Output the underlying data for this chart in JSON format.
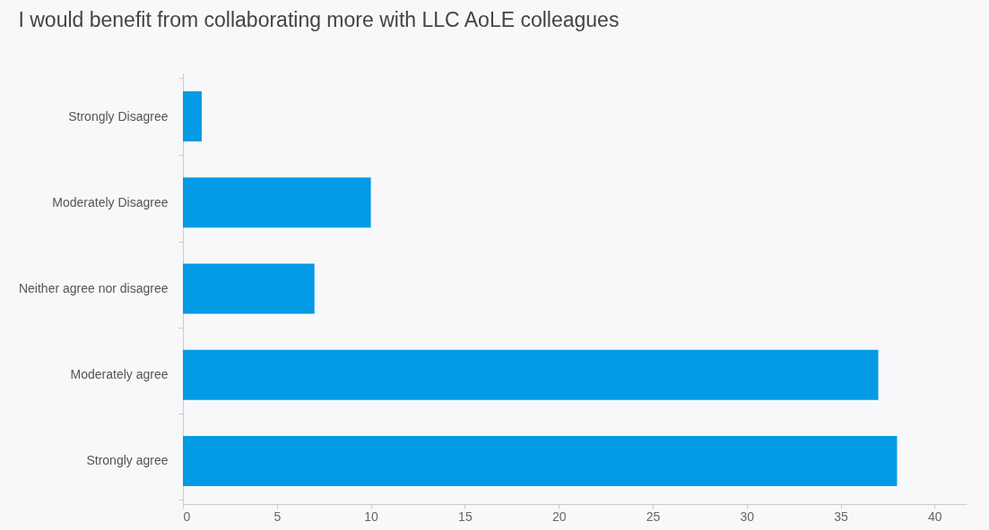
{
  "chart_data": {
    "type": "bar",
    "orientation": "horizontal",
    "title": "I would benefit from collaborating more with LLC AoLE colleagues",
    "categories": [
      "Strongly Disagree",
      "Moderately Disagree",
      "Neither agree nor disagree",
      "Moderately agree",
      "Strongly agree"
    ],
    "values": [
      1,
      10,
      7,
      37,
      38
    ],
    "color": "#039be5",
    "xlim": [
      0,
      41.7
    ],
    "xticks": [
      0,
      5,
      10,
      15,
      20,
      25,
      30,
      35,
      40
    ],
    "grid": false
  }
}
